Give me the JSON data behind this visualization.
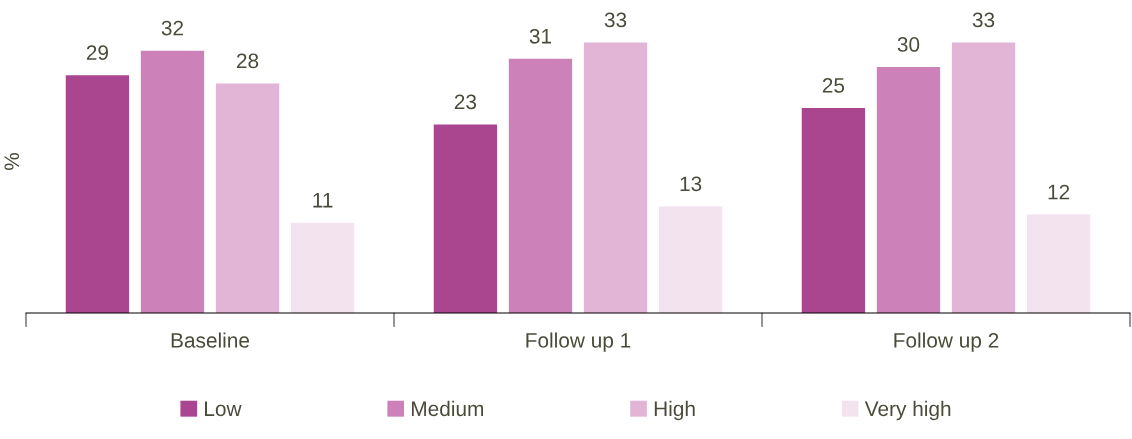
{
  "chart_data": {
    "type": "bar",
    "ylabel": "%",
    "categories": [
      "Baseline",
      "Follow up 1",
      "Follow up 2"
    ],
    "series": [
      {
        "name": "Low",
        "color": "#a9468f",
        "values": [
          29,
          23,
          25
        ]
      },
      {
        "name": "Medium",
        "color": "#cc82b9",
        "values": [
          32,
          31,
          30
        ]
      },
      {
        "name": "High",
        "color": "#e2b5d6",
        "values": [
          28,
          33,
          33
        ]
      },
      {
        "name": "Very high",
        "color": "#f3e3ef",
        "values": [
          11,
          13,
          12
        ]
      }
    ],
    "data_labels": true,
    "grid": false,
    "legend": "bottom",
    "tick_labels": "x"
  }
}
